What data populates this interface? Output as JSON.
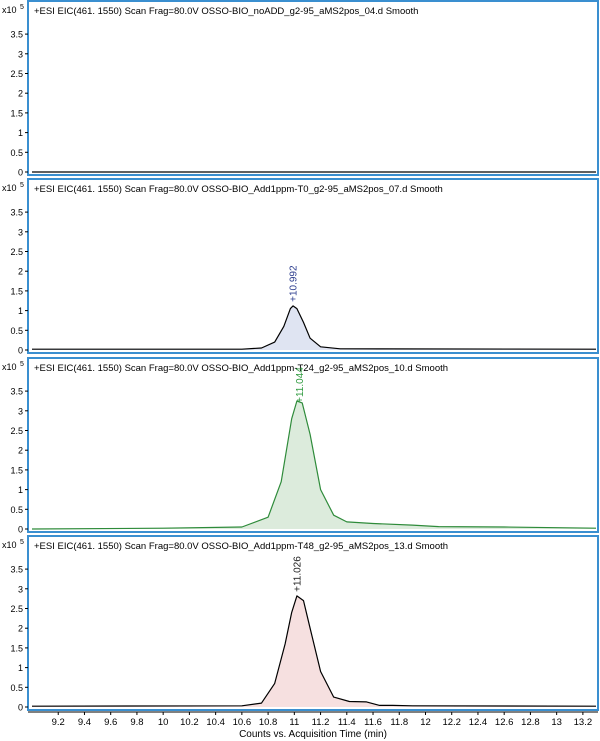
{
  "x_axis_label": "Counts vs. Acquisition Time (min)",
  "chart_data": [
    {
      "type": "area",
      "title": "+ESI EIC(461. 1550) Scan Frag=80.0V OSSO-BIO_noADD_g2-95_aMS2pos_04.d   Smooth",
      "y_scale_label": "x10",
      "y_scale_exp": "5",
      "xlim": [
        9.0,
        13.3
      ],
      "ylim": [
        0,
        3.7
      ],
      "yticks": [
        "0",
        "0.5",
        "1",
        "1.5",
        "2",
        "2.5",
        "3",
        "3.5"
      ],
      "line_color": "#000000",
      "fill_color": null,
      "peak_label": null,
      "points": [
        [
          9.0,
          0.0
        ],
        [
          13.3,
          0.0
        ]
      ]
    },
    {
      "type": "area",
      "title": "+ESI EIC(461. 1550) Scan Frag=80.0V OSSO-BIO_Add1ppm-T0_g2-95_aMS2pos_07.d   Smooth",
      "y_scale_label": "x10",
      "y_scale_exp": "5",
      "xlim": [
        9.0,
        13.3
      ],
      "ylim": [
        0,
        3.7
      ],
      "yticks": [
        "0",
        "0.5",
        "1",
        "1.5",
        "2",
        "2.5",
        "3",
        "3.5"
      ],
      "line_color": "#000000",
      "fill_color": "#dfe4f2",
      "peak_label": {
        "text": "+10.992",
        "x": 10.992,
        "y": 1.12,
        "color": "#2e3f8f"
      },
      "points": [
        [
          9.0,
          0.02
        ],
        [
          10.6,
          0.02
        ],
        [
          10.75,
          0.05
        ],
        [
          10.85,
          0.2
        ],
        [
          10.92,
          0.6
        ],
        [
          10.97,
          1.05
        ],
        [
          10.99,
          1.12
        ],
        [
          11.02,
          1.05
        ],
        [
          11.07,
          0.7
        ],
        [
          11.12,
          0.3
        ],
        [
          11.2,
          0.08
        ],
        [
          11.35,
          0.03
        ],
        [
          13.3,
          0.02
        ]
      ]
    },
    {
      "type": "area",
      "title": "+ESI EIC(461. 1550) Scan Frag=80.0V OSSO-BIO_Add1ppm-T24_g2-95_aMS2pos_10.d   Smooth",
      "y_scale_label": "x10",
      "y_scale_exp": "5",
      "xlim": [
        9.0,
        13.3
      ],
      "ylim": [
        0,
        3.7
      ],
      "yticks": [
        "0",
        "0.5",
        "1",
        "1.5",
        "2",
        "2.5",
        "3",
        "3.5"
      ],
      "line_color": "#2e8b3a",
      "fill_color": "#dcebdc",
      "peak_label": {
        "text": "+11.044",
        "x": 11.044,
        "y": 3.1,
        "color": "#2e9a3e"
      },
      "points": [
        [
          9.0,
          0.0
        ],
        [
          10.0,
          0.02
        ],
        [
          10.6,
          0.05
        ],
        [
          10.8,
          0.3
        ],
        [
          10.9,
          1.2
        ],
        [
          10.98,
          2.8
        ],
        [
          11.02,
          3.25
        ],
        [
          11.06,
          3.2
        ],
        [
          11.12,
          2.4
        ],
        [
          11.2,
          1.0
        ],
        [
          11.3,
          0.35
        ],
        [
          11.4,
          0.18
        ],
        [
          11.6,
          0.14
        ],
        [
          11.9,
          0.1
        ],
        [
          12.1,
          0.06
        ],
        [
          12.6,
          0.05
        ],
        [
          13.3,
          0.02
        ]
      ]
    },
    {
      "type": "area",
      "title": "+ESI EIC(461. 1550) Scan Frag=80.0V OSSO-BIO_Add1ppm-T48_g2-95_aMS2pos_13.d   Smooth",
      "y_scale_label": "x10",
      "y_scale_exp": "5",
      "xlim": [
        9.0,
        13.3
      ],
      "ylim": [
        0,
        3.7
      ],
      "yticks": [
        "0",
        "0.5",
        "1",
        "1.5",
        "2",
        "2.5",
        "3",
        "3.5"
      ],
      "line_color": "#000000",
      "fill_color": "#f6e0e0",
      "peak_label": {
        "text": "+11.026",
        "x": 11.026,
        "y": 2.82,
        "color": "#222222"
      },
      "points": [
        [
          9.0,
          0.02
        ],
        [
          10.6,
          0.03
        ],
        [
          10.75,
          0.1
        ],
        [
          10.85,
          0.6
        ],
        [
          10.93,
          1.6
        ],
        [
          10.98,
          2.4
        ],
        [
          11.02,
          2.82
        ],
        [
          11.07,
          2.7
        ],
        [
          11.12,
          2.0
        ],
        [
          11.2,
          0.9
        ],
        [
          11.3,
          0.25
        ],
        [
          11.42,
          0.14
        ],
        [
          11.55,
          0.13
        ],
        [
          11.65,
          0.04
        ],
        [
          11.75,
          0.04
        ],
        [
          11.9,
          0.03
        ],
        [
          13.3,
          0.02
        ]
      ]
    }
  ],
  "x_ticks": [
    "9.2",
    "9.4",
    "9.6",
    "9.8",
    "10",
    "10.2",
    "10.4",
    "10.6",
    "10.8",
    "11",
    "11.2",
    "11.4",
    "11.6",
    "11.8",
    "12",
    "12.2",
    "12.4",
    "12.6",
    "12.8",
    "13",
    "13.2"
  ]
}
